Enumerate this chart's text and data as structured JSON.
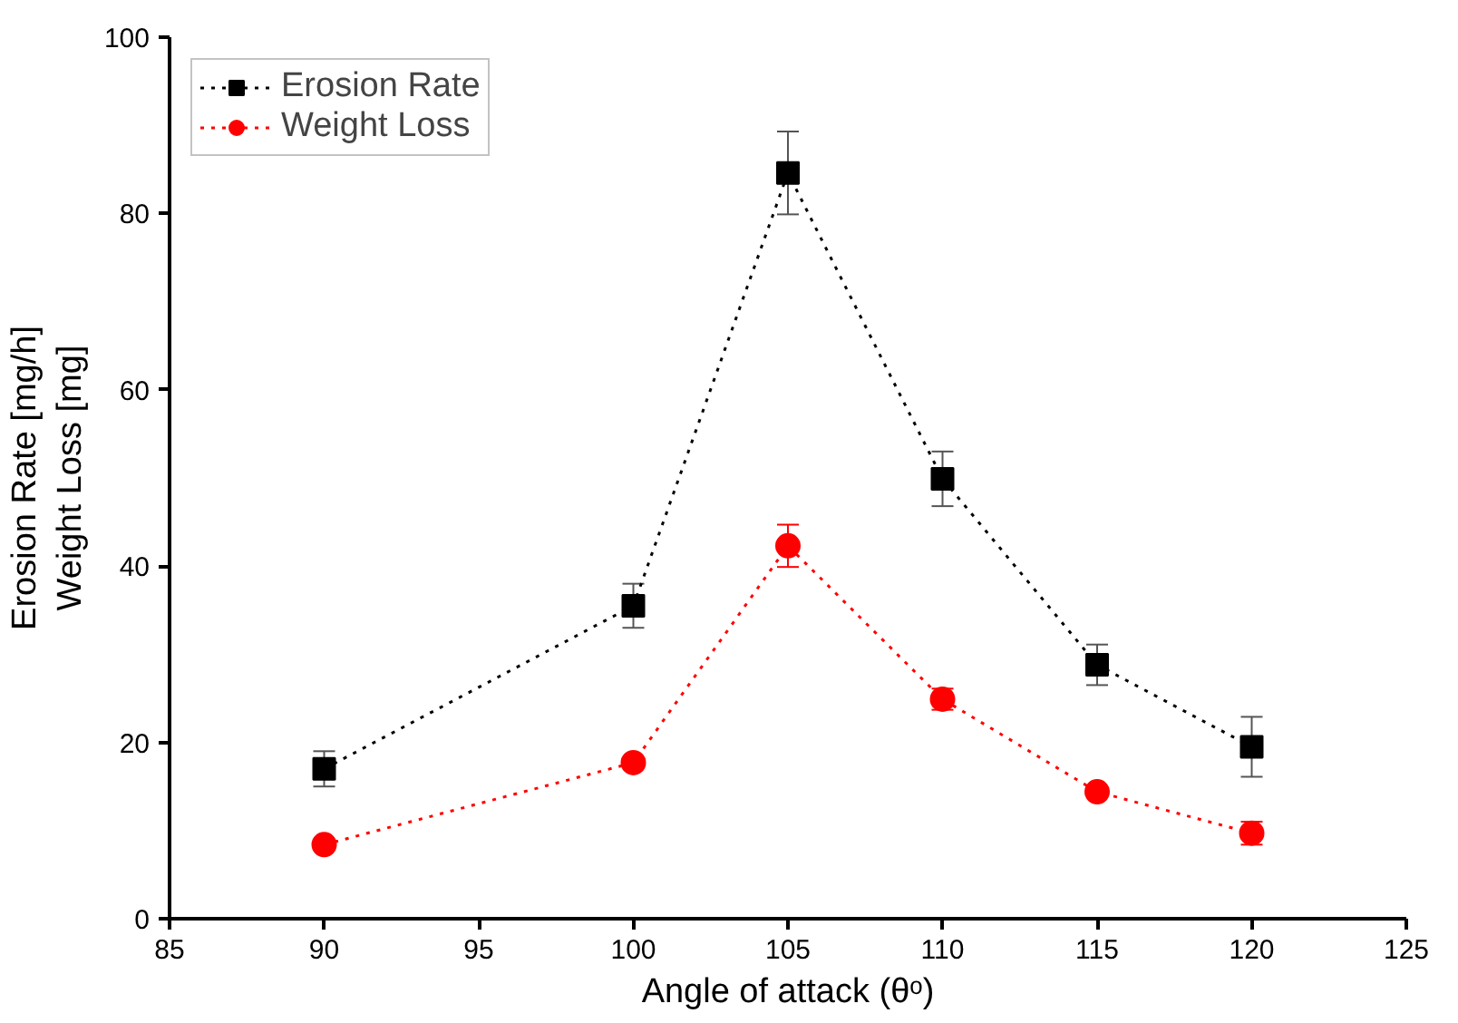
{
  "chart_data": {
    "type": "line",
    "xlabel": "Angle of attack (θᵒ)",
    "ylabel": "Erosion Rate [mg/h]\nWeight Loss [mg]",
    "x": [
      90,
      100,
      105,
      110,
      115,
      120
    ],
    "series": [
      {
        "name": "Erosion Rate",
        "color": "#000000",
        "marker": "square",
        "values": [
          17,
          35.5,
          84.6,
          49.9,
          28.8,
          19.5
        ],
        "errors": [
          2,
          2.5,
          4.7,
          3.1,
          2.3,
          3.4
        ]
      },
      {
        "name": "Weight Loss",
        "color": "#ff0000",
        "marker": "circle",
        "values": [
          8.4,
          17.7,
          42.3,
          24.9,
          14.4,
          9.7
        ],
        "errors": [
          null,
          null,
          2.4,
          1.2,
          0.5,
          1.3
        ]
      }
    ],
    "xlim": [
      85,
      125
    ],
    "xticks": [
      85,
      90,
      95,
      100,
      105,
      110,
      115,
      120,
      125
    ],
    "ylim": [
      0,
      100
    ],
    "yticks": [
      0,
      20,
      40,
      60,
      80,
      100
    ],
    "line_style": "dotted",
    "grid": false,
    "legend": "top left"
  }
}
